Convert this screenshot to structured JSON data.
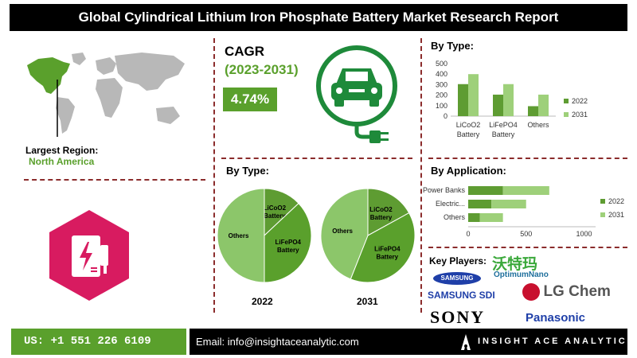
{
  "report": {
    "title": "Global Cylindrical Lithium Iron Phosphate Battery Market Research Report"
  },
  "region": {
    "label": "Largest Region:",
    "value": "North America"
  },
  "cagr": {
    "label": "CAGR",
    "period": "(2023-2031)",
    "value": "4.74%"
  },
  "pie_section": {
    "title": "By Type:",
    "year_2022": "2022",
    "year_2031": "2031"
  },
  "bar_type_section": {
    "title": "By Type:"
  },
  "bar_app_section": {
    "title": "By Application:"
  },
  "key_players": {
    "label": "Key Players:",
    "optimum_cn": "沃特玛",
    "optimum": "OptimumNano",
    "samsung": "SAMSUNG",
    "samsung_sdi": "SAMSUNG SDI",
    "lg_chem": "LG Chem",
    "sony": "SONY",
    "panasonic": "Panasonic"
  },
  "footer": {
    "phone": "US: +1 551 226 6109",
    "email": "Email: info@insightaceanalytic.com",
    "brand": "INSIGHT ACE ANALYTIC"
  },
  "colors": {
    "dark_green": "#5e9c32",
    "light_green": "#9ed07a",
    "accent": "#5aa02c",
    "magenta": "#d81b60"
  },
  "chart_data": [
    {
      "type": "bar",
      "title": "By Type:",
      "categories": [
        "LiCoO2 Battery",
        "LiFePO4 Battery",
        "Others"
      ],
      "category_lines": [
        [
          "LiCoO2",
          "Battery"
        ],
        [
          "LiFePO4",
          "Battery"
        ],
        [
          "Others"
        ]
      ],
      "series": [
        {
          "name": "2022",
          "values": [
            305,
            205,
            95
          ],
          "color": "#5e9c32"
        },
        {
          "name": "2031",
          "values": [
            400,
            305,
            205
          ],
          "color": "#9ed07a"
        }
      ],
      "ylim": [
        0,
        500
      ],
      "yticks": [
        0,
        100,
        200,
        300,
        400,
        500
      ],
      "legend": "right",
      "grid": false
    },
    {
      "type": "bar",
      "orientation": "horizontal",
      "title": "By Application:",
      "categories": [
        "Power Banks",
        "Electric...",
        "Others"
      ],
      "series": [
        {
          "name": "2022",
          "values": [
            300,
            200,
            100
          ],
          "color": "#5e9c32"
        },
        {
          "name": "2031",
          "values": [
            700,
            500,
            300
          ],
          "color": "#9ed07a"
        }
      ],
      "xlim": [
        0,
        1100
      ],
      "xticks": [
        0,
        500,
        1000
      ],
      "legend": "right",
      "grid": false
    },
    {
      "type": "pie",
      "title": "2022",
      "labels": [
        "LiCoO2 Battery",
        "LiFePO4 Battery",
        "Others"
      ],
      "values": [
        13,
        37,
        50
      ],
      "colors": [
        "#5e9c32",
        "#5aa02c",
        "#8cc66a"
      ]
    },
    {
      "type": "pie",
      "title": "2031",
      "labels": [
        "LiCoO2 Battery",
        "LiFePO4 Battery",
        "Others"
      ],
      "values": [
        17,
        39,
        44
      ],
      "colors": [
        "#5e9c32",
        "#5aa02c",
        "#8cc66a"
      ]
    }
  ]
}
